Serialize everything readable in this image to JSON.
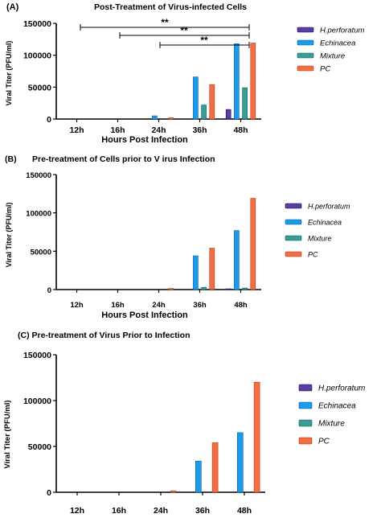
{
  "chart_data": [
    {
      "panel_label": "(A)",
      "title": "Post-Treatment of Virus-infected Cells",
      "type": "bar",
      "xlabel": "Hours Post Infection",
      "ylabel": "Viral Titer (PFU/ml)",
      "ylim": [
        0,
        150000
      ],
      "yticks": [
        "0",
        "50000",
        "100000",
        "150000"
      ],
      "categories": [
        "12h",
        "16h",
        "24h",
        "36h",
        "48h"
      ],
      "series": [
        {
          "name": "H.perforatum",
          "values": [
            0,
            0,
            0,
            0,
            15000
          ]
        },
        {
          "name": "Echinacea",
          "values": [
            0,
            0,
            5000,
            66000,
            118000
          ]
        },
        {
          "name": "Mixture",
          "values": [
            0,
            0,
            0,
            22000,
            49000
          ]
        },
        {
          "name": "PC",
          "values": [
            0,
            0,
            2000,
            54000,
            119000
          ]
        }
      ],
      "significance": [
        "**",
        "**",
        "**"
      ],
      "legend": "right"
    },
    {
      "panel_label": "(B)",
      "title": "Pre-treatment of Cells prior to V irus Infection",
      "type": "bar",
      "xlabel": "Hours Post Infection",
      "ylabel": "Viral Titer (PFU/ml)",
      "ylim": [
        0,
        150000
      ],
      "yticks": [
        "0",
        "50000",
        "100000",
        "150000"
      ],
      "categories": [
        "12h",
        "16h",
        "24h",
        "36h",
        "48h"
      ],
      "series": [
        {
          "name": "H.perforatum",
          "values": [
            0,
            0,
            0,
            0,
            1000
          ]
        },
        {
          "name": "Echinacea",
          "values": [
            0,
            0,
            0,
            44000,
            77000
          ]
        },
        {
          "name": "Mixture",
          "values": [
            0,
            0,
            0,
            3000,
            2000
          ]
        },
        {
          "name": "PC",
          "values": [
            0,
            0,
            1500,
            54000,
            119000
          ]
        }
      ],
      "legend": "right"
    },
    {
      "panel_label": "",
      "title": "(C)  Pre-treatment of Virus Prior to Infection",
      "type": "bar",
      "xlabel": "",
      "ylabel": "Viral Titer (PFU/ml)",
      "ylim": [
        0,
        150000
      ],
      "yticks": [
        "0",
        "50000",
        "100000",
        "150000"
      ],
      "categories": [
        "12h",
        "16h",
        "24h",
        "36h",
        "48h"
      ],
      "series": [
        {
          "name": "H.perforatum",
          "values": [
            0,
            0,
            0,
            0,
            0
          ]
        },
        {
          "name": "Echinacea",
          "values": [
            0,
            0,
            0,
            34000,
            65000
          ]
        },
        {
          "name": "Mixture",
          "values": [
            0,
            0,
            0,
            0,
            0
          ]
        },
        {
          "name": "PC",
          "values": [
            0,
            0,
            1500,
            54000,
            120000
          ]
        }
      ],
      "legend": "right"
    }
  ],
  "colors": {
    "H.perforatum": "#5b3fa0",
    "Echinacea": "#1e9be8",
    "Mixture": "#3a9c94",
    "PC": "#f26f45"
  }
}
